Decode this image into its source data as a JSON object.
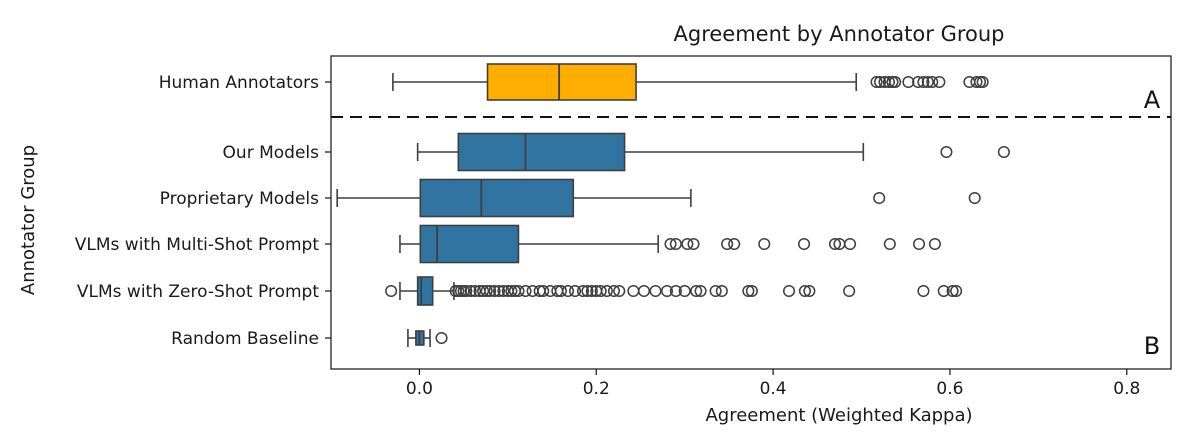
{
  "chart_data": {
    "type": "boxplot",
    "orientation": "horizontal",
    "title": "Agreement by Annotator Group",
    "xlabel": "Agreement (Weighted Kappa)",
    "ylabel": "Annotator Group",
    "xlim": [
      -0.1,
      0.85
    ],
    "xticks": [
      0.0,
      0.2,
      0.4,
      0.6,
      0.8
    ],
    "xtick_labels": [
      "0.0",
      "0.2",
      "0.4",
      "0.6",
      "0.8"
    ],
    "grid": false,
    "panel_labels": [
      "A",
      "B"
    ],
    "separator": "dashed line between Human Annotators and Our Models",
    "colors": {
      "human": "#FFAE00",
      "model": "#3274A1",
      "edge": "#3f3f3f"
    },
    "groups": [
      {
        "name": "Human Annotators",
        "color": "#FFAE00",
        "whisker_low": -0.03,
        "q1": 0.077,
        "median": 0.158,
        "q3": 0.245,
        "whisker_high": 0.494,
        "outliers": [
          0.517,
          0.521,
          0.526,
          0.531,
          0.535,
          0.538,
          0.553,
          0.564,
          0.57,
          0.575,
          0.58,
          0.588,
          0.622,
          0.63,
          0.634,
          0.637
        ]
      },
      {
        "name": "Our Models",
        "color": "#3274A1",
        "whisker_low": -0.002,
        "q1": 0.044,
        "median": 0.12,
        "q3": 0.232,
        "whisker_high": 0.502,
        "outliers": [
          0.596,
          0.661
        ]
      },
      {
        "name": "Proprietary Models",
        "color": "#3274A1",
        "whisker_low": -0.093,
        "q1": 0.001,
        "median": 0.07,
        "q3": 0.174,
        "whisker_high": 0.307,
        "outliers": [
          0.52,
          0.628
        ]
      },
      {
        "name": "VLMs with Multi-Shot Prompt",
        "color": "#3274A1",
        "whisker_low": -0.022,
        "q1": 0.001,
        "median": 0.02,
        "q3": 0.112,
        "whisker_high": 0.27,
        "outliers": [
          0.284,
          0.29,
          0.303,
          0.31,
          0.348,
          0.356,
          0.39,
          0.435,
          0.47,
          0.475,
          0.487,
          0.532,
          0.565,
          0.583
        ]
      },
      {
        "name": "VLMs with Zero-Shot Prompt",
        "color": "#3274A1",
        "whisker_low": -0.022,
        "q1": -0.002,
        "median": 0.002,
        "q3": 0.015,
        "whisker_high": 0.039,
        "outliers": [
          -0.032,
          0.041,
          0.044,
          0.047,
          0.05,
          0.053,
          0.058,
          0.063,
          0.068,
          0.072,
          0.076,
          0.08,
          0.085,
          0.09,
          0.095,
          0.1,
          0.104,
          0.108,
          0.112,
          0.12,
          0.128,
          0.136,
          0.14,
          0.148,
          0.156,
          0.16,
          0.168,
          0.176,
          0.185,
          0.19,
          0.195,
          0.2,
          0.205,
          0.212,
          0.22,
          0.226,
          0.242,
          0.254,
          0.267,
          0.28,
          0.29,
          0.3,
          0.313,
          0.318,
          0.335,
          0.342,
          0.372,
          0.376,
          0.418,
          0.436,
          0.441,
          0.486,
          0.57,
          0.593,
          0.603,
          0.607
        ]
      },
      {
        "name": "Random Baseline",
        "color": "#3274A1",
        "whisker_low": -0.013,
        "q1": -0.004,
        "median": 0.0,
        "q3": 0.005,
        "whisker_high": 0.012,
        "outliers": [
          0.025
        ]
      }
    ]
  }
}
